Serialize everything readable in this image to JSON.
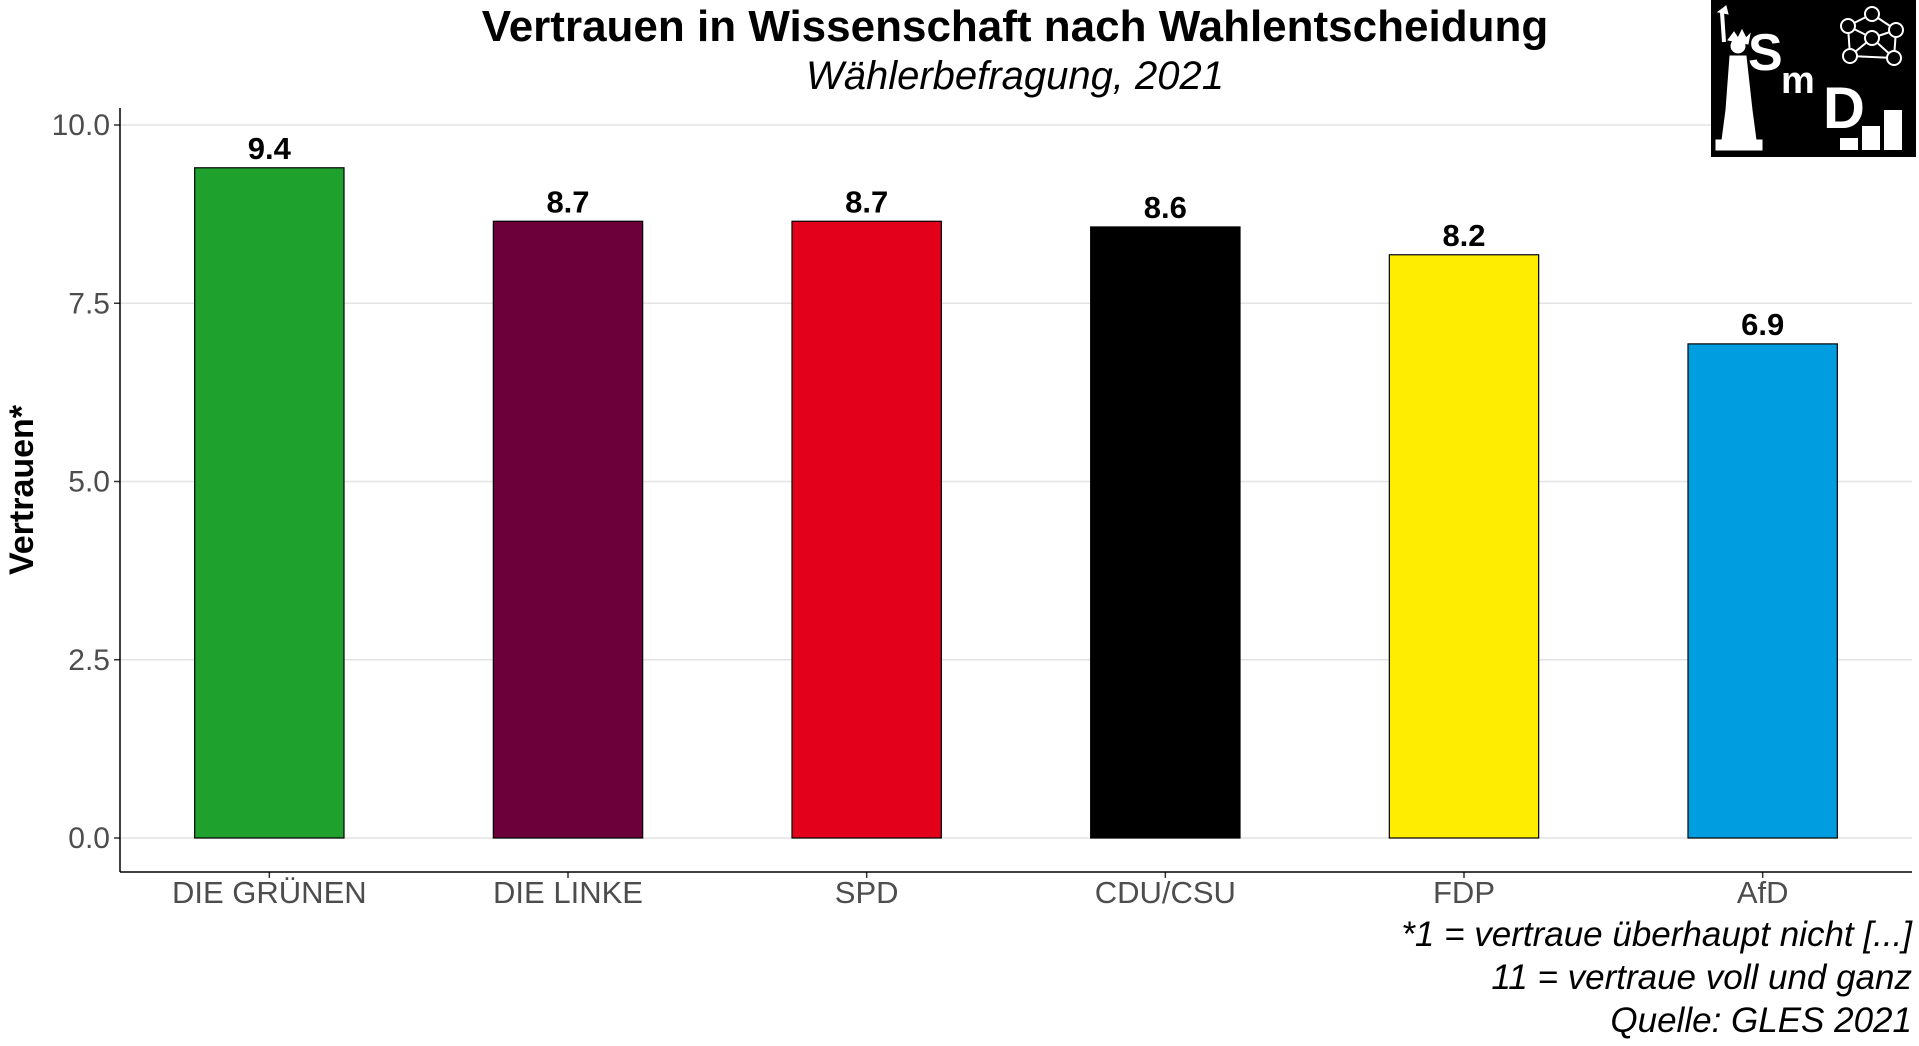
{
  "chart_data": {
    "type": "bar",
    "title": "Vertrauen in Wissenschaft nach Wahlentscheidung",
    "subtitle": "Wählerbefragung, 2021",
    "ylabel": "Vertrauen*",
    "xlabel": "",
    "ylim": [
      0,
      10.5
    ],
    "yticks": [
      "0.0",
      "2.5",
      "5.0",
      "7.5",
      "10.0"
    ],
    "ytick_values": [
      0,
      2.5,
      5,
      7.5,
      10
    ],
    "grid": true,
    "categories": [
      "DIE GRÜNEN",
      "DIE LINKE",
      "SPD",
      "CDU/CSU",
      "FDP",
      "AfD"
    ],
    "values": [
      9.4,
      8.65,
      8.65,
      8.57,
      8.18,
      6.93
    ],
    "value_labels": [
      "9.4",
      "8.7",
      "8.7",
      "8.6",
      "8.2",
      "6.9"
    ],
    "colors": [
      "#1fa12e",
      "#6b003b",
      "#e3001b",
      "#000000",
      "#ffed00",
      "#009ee0"
    ],
    "notes": [
      "*1 = vertraue überhaupt nicht [...]",
      "11 = vertraue voll und ganz",
      "Quelle: GLES 2021"
    ]
  },
  "logo": {
    "letters": [
      "S",
      "m",
      "D"
    ]
  }
}
